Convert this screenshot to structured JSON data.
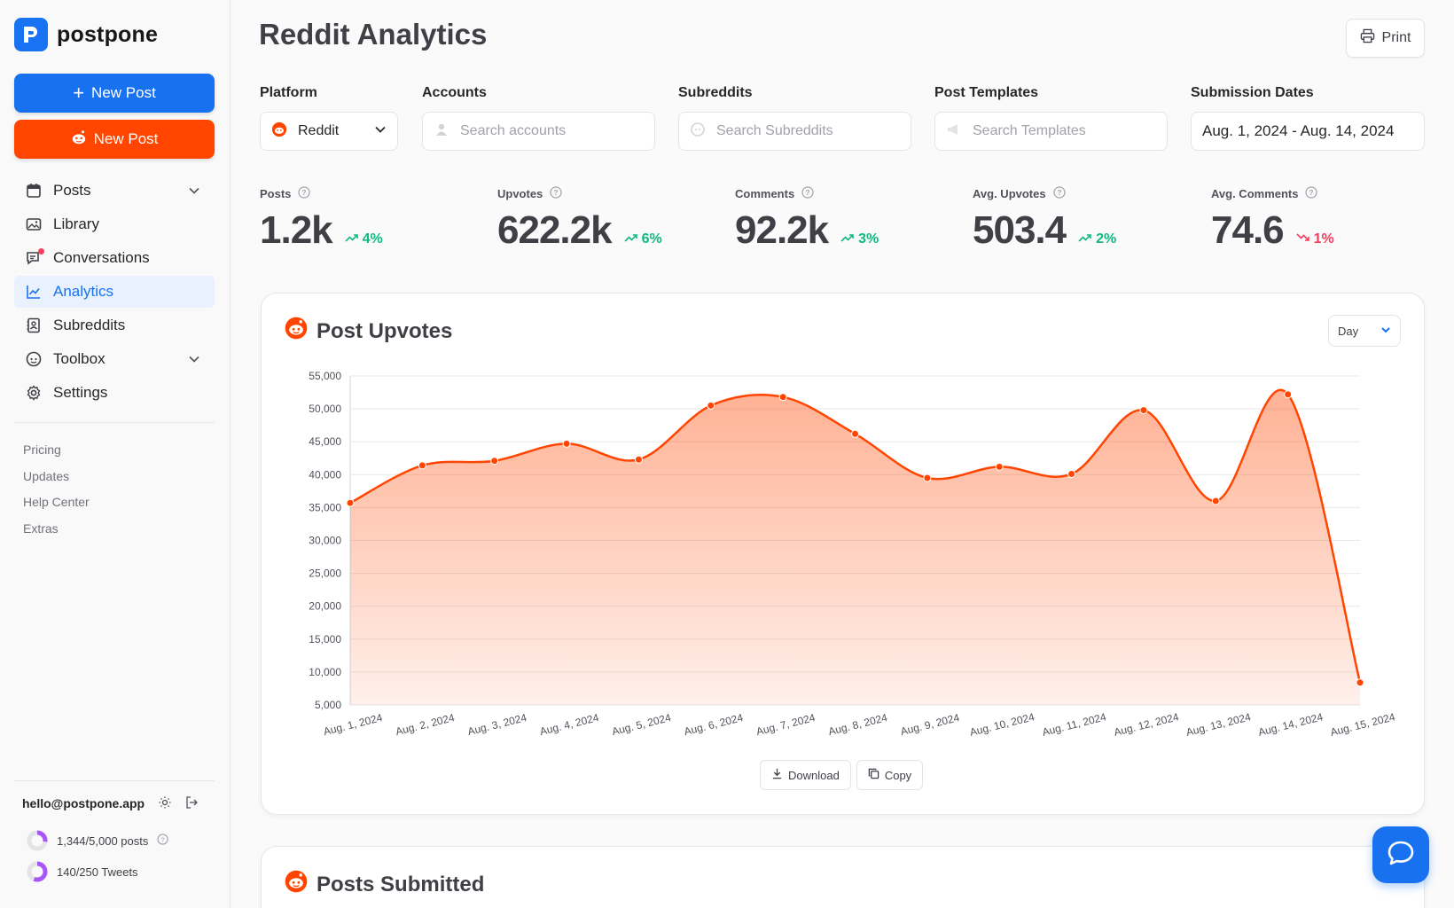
{
  "app": {
    "name": "postpone"
  },
  "sidebar": {
    "new_post": "New Post",
    "new_reddit_post": "New Post",
    "nav": [
      {
        "label": "Posts",
        "icon": "calendar-icon",
        "expandable": true
      },
      {
        "label": "Library",
        "icon": "image-icon"
      },
      {
        "label": "Conversations",
        "icon": "chat-icon",
        "badge": true
      },
      {
        "label": "Analytics",
        "icon": "chart-icon",
        "active": true
      },
      {
        "label": "Subreddits",
        "icon": "contacts-icon"
      },
      {
        "label": "Toolbox",
        "icon": "reddit-icon",
        "expandable": true
      },
      {
        "label": "Settings",
        "icon": "gear-icon"
      }
    ],
    "links": [
      "Pricing",
      "Updates",
      "Help Center",
      "Extras"
    ],
    "user_email": "hello@postpone.app",
    "quota_posts": "1,344/5,000 posts",
    "quota_posts_fraction": 0.27,
    "quota_tweets": "140/250 Tweets",
    "quota_tweets_fraction": 0.56
  },
  "header": {
    "title": "Reddit Analytics",
    "print": "Print"
  },
  "filters": {
    "platform": {
      "label": "Platform",
      "value": "Reddit"
    },
    "accounts": {
      "label": "Accounts",
      "placeholder": "Search accounts"
    },
    "subreddits": {
      "label": "Subreddits",
      "placeholder": "Search Subreddits"
    },
    "templates": {
      "label": "Post Templates",
      "placeholder": "Search Templates"
    },
    "dates": {
      "label": "Submission Dates",
      "value": "Aug. 1, 2024 - Aug. 14, 2024"
    }
  },
  "stats": [
    {
      "label": "Posts",
      "value": "1.2k",
      "delta": "4%",
      "trend": "up"
    },
    {
      "label": "Upvotes",
      "value": "622.2k",
      "delta": "6%",
      "trend": "up"
    },
    {
      "label": "Comments",
      "value": "92.2k",
      "delta": "3%",
      "trend": "up"
    },
    {
      "label": "Avg. Upvotes",
      "value": "503.4",
      "delta": "2%",
      "trend": "up"
    },
    {
      "label": "Avg. Comments",
      "value": "74.6",
      "delta": "1%",
      "trend": "down"
    }
  ],
  "upvotes_card": {
    "title": "Post Upvotes",
    "interval": "Day",
    "download": "Download",
    "copy": "Copy"
  },
  "submitted_card": {
    "title": "Posts Submitted"
  },
  "colors": {
    "accent": "#1872f0",
    "reddit": "#ff4500",
    "up": "#10b981",
    "down": "#f43f5e"
  },
  "chart_data": {
    "type": "area",
    "title": "Post Upvotes",
    "x": [
      "Aug. 1, 2024",
      "Aug. 2, 2024",
      "Aug. 3, 2024",
      "Aug. 4, 2024",
      "Aug. 5, 2024",
      "Aug. 6, 2024",
      "Aug. 7, 2024",
      "Aug. 8, 2024",
      "Aug. 9, 2024",
      "Aug. 10, 2024",
      "Aug. 11, 2024",
      "Aug. 12, 2024",
      "Aug. 13, 2024",
      "Aug. 14, 2024",
      "Aug. 15, 2024"
    ],
    "series": [
      {
        "values": [
          35700,
          41400,
          42100,
          44700,
          42300,
          50500,
          51800,
          46200,
          39500,
          41200,
          40100,
          49800,
          36000,
          52200,
          8400
        ]
      }
    ],
    "yticks": [
      "5,000",
      "10,000",
      "15,000",
      "20,000",
      "25,000",
      "30,000",
      "35,000",
      "40,000",
      "45,000",
      "50,000",
      "55,000"
    ],
    "ylim": [
      5000,
      55000
    ],
    "grid": true,
    "color": "#ff4500"
  }
}
